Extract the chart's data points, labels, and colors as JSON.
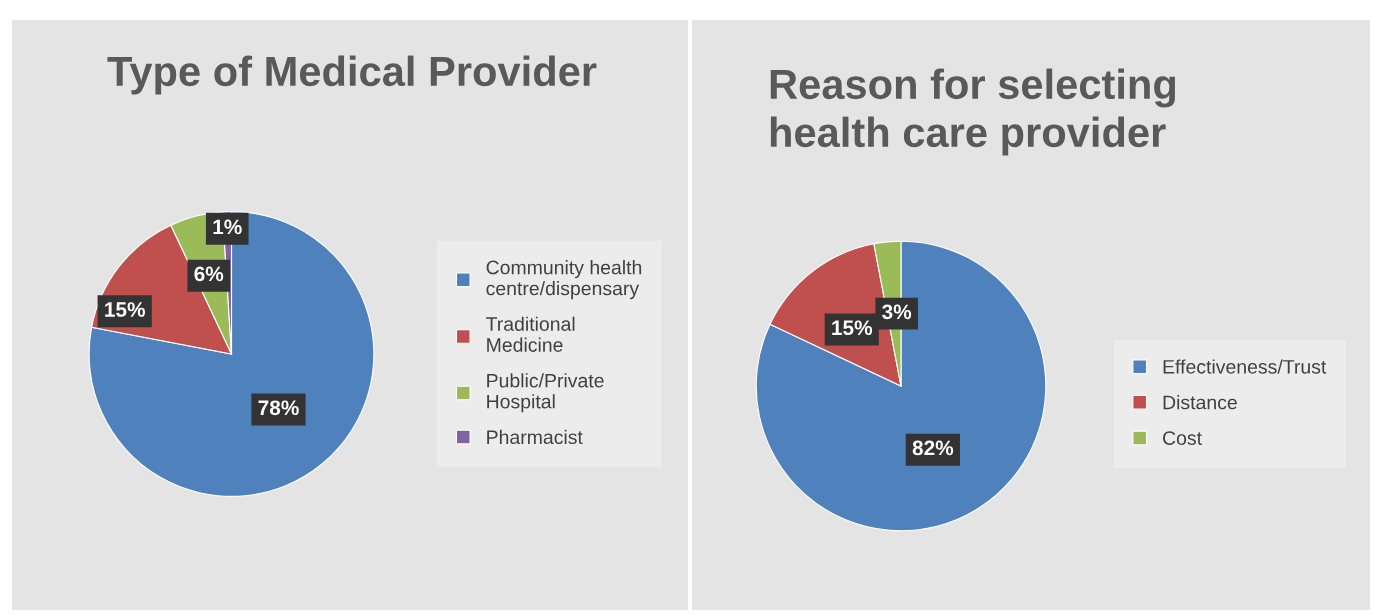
{
  "chart_data": [
    {
      "type": "pie",
      "title": "Type of Medical Provider",
      "categories": [
        "Community health\ncentre/dispensary",
        "Traditional\nMedicine",
        "Public/Private\nHospital",
        "Pharmacist"
      ],
      "values": [
        78,
        15,
        6,
        1
      ],
      "colors": [
        "#4f81bd",
        "#c0504d",
        "#9bbb59",
        "#8064a2"
      ],
      "value_labels": [
        "78%",
        "15%",
        "6%",
        "1%"
      ],
      "legend": "right"
    },
    {
      "type": "pie",
      "title": "Reason for selecting\nhealth care provider",
      "categories": [
        "Effectiveness/Trust",
        "Distance",
        "Cost"
      ],
      "values": [
        82,
        15,
        3
      ],
      "colors": [
        "#4f81bd",
        "#c0504d",
        "#9bbb59"
      ],
      "value_labels": [
        "82%",
        "15%",
        "3%"
      ],
      "legend": "right"
    }
  ]
}
